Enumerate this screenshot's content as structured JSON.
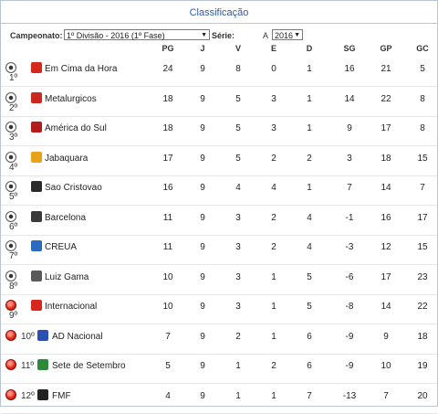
{
  "title": "Classificação",
  "filters": {
    "championship_label": "Campeonato:",
    "championship_value": "1º Divisão - 2016 (1º Fase)",
    "serie_label": "Série:",
    "serie_value": "A",
    "year_value": "2016"
  },
  "columns": [
    "PG",
    "J",
    "V",
    "E",
    "D",
    "SG",
    "GP",
    "GC"
  ],
  "rows": [
    {
      "pos": "1º",
      "team": "Em Cima da Hora",
      "stats": [
        "24",
        "9",
        "8",
        "0",
        "1",
        "16",
        "21",
        "5"
      ],
      "marker": "soccer",
      "crest_color": "#d7261e"
    },
    {
      "pos": "2º",
      "team": "Metalurgicos",
      "stats": [
        "18",
        "9",
        "5",
        "3",
        "1",
        "14",
        "22",
        "8"
      ],
      "marker": "soccer",
      "crest_color": "#c8281e"
    },
    {
      "pos": "3º",
      "team": "América do Sul",
      "stats": [
        "18",
        "9",
        "5",
        "3",
        "1",
        "9",
        "17",
        "8"
      ],
      "marker": "soccer",
      "crest_color": "#b31c1c"
    },
    {
      "pos": "4º",
      "team": "Jabaquara",
      "stats": [
        "17",
        "9",
        "5",
        "2",
        "2",
        "3",
        "18",
        "15"
      ],
      "marker": "soccer",
      "crest_color": "#e8a21a"
    },
    {
      "pos": "5º",
      "team": "Sao Cristovao",
      "stats": [
        "16",
        "9",
        "4",
        "4",
        "1",
        "7",
        "14",
        "7"
      ],
      "marker": "soccer",
      "crest_color": "#2a2a2a"
    },
    {
      "pos": "6º",
      "team": "Barcelona",
      "stats": [
        "11",
        "9",
        "3",
        "2",
        "4",
        "-1",
        "16",
        "17"
      ],
      "marker": "soccer",
      "crest_color": "#3a3a3a"
    },
    {
      "pos": "7º",
      "team": "CREUA",
      "stats": [
        "11",
        "9",
        "3",
        "2",
        "4",
        "-3",
        "12",
        "15"
      ],
      "marker": "soccer",
      "crest_color": "#2a6bc0"
    },
    {
      "pos": "8º",
      "team": "Luiz Gama",
      "stats": [
        "10",
        "9",
        "3",
        "1",
        "5",
        "-6",
        "17",
        "23"
      ],
      "marker": "soccer",
      "crest_color": "#5a5a5a"
    },
    {
      "pos": "9º",
      "team": "Internacional",
      "stats": [
        "10",
        "9",
        "3",
        "1",
        "5",
        "-8",
        "14",
        "22"
      ],
      "marker": "red",
      "crest_color": "#d7261e"
    },
    {
      "pos": "10º",
      "team": "AD Nacional",
      "stats": [
        "7",
        "9",
        "2",
        "1",
        "6",
        "-9",
        "9",
        "18"
      ],
      "marker": "red",
      "crest_color": "#2a4fb0"
    },
    {
      "pos": "11º",
      "team": "Sete de Setembro",
      "stats": [
        "5",
        "9",
        "1",
        "2",
        "6",
        "-9",
        "10",
        "19"
      ],
      "marker": "red",
      "crest_color": "#2e8a3a"
    },
    {
      "pos": "12º",
      "team": "FMF",
      "stats": [
        "4",
        "9",
        "1",
        "1",
        "7",
        "-13",
        "7",
        "20"
      ],
      "marker": "red",
      "crest_color": "#222222"
    }
  ]
}
